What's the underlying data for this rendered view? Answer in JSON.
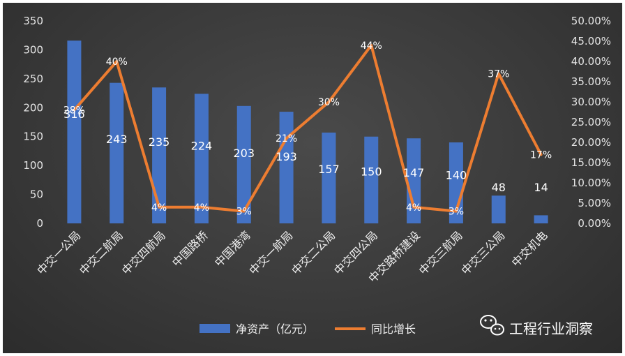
{
  "chart_data": {
    "type": "bar",
    "categories": [
      "中交一公局",
      "中交二航局",
      "中交四航局",
      "中国路桥",
      "中国港湾",
      "中交一航局",
      "中交二公局",
      "中交四公局",
      "中交路桥建设",
      "中交三航局",
      "中交三公局",
      "中交机电"
    ],
    "series": [
      {
        "name": "净资产（亿元）",
        "type": "bar",
        "axis": "left",
        "values": [
          316,
          243,
          235,
          224,
          203,
          193,
          157,
          150,
          147,
          140,
          48,
          14
        ],
        "labels": [
          "316",
          "243",
          "235",
          "224",
          "203",
          "193",
          "157",
          "150",
          "147",
          "140",
          "48",
          "14"
        ]
      },
      {
        "name": "同比增长",
        "type": "line",
        "axis": "right",
        "values": [
          28,
          40,
          4,
          4,
          3,
          21,
          30,
          44,
          4,
          3,
          37,
          17
        ],
        "labels": [
          "28%",
          "40%",
          "4%",
          "4%",
          "3%",
          "21%",
          "30%",
          "44%",
          "4%",
          "3%",
          "37%",
          "17%"
        ]
      }
    ],
    "ylim_left": [
      0,
      350
    ],
    "yticks_left": [
      "0",
      "50",
      "100",
      "150",
      "200",
      "250",
      "300",
      "350"
    ],
    "ylim_right": [
      0,
      50
    ],
    "yticks_right": [
      "0.00%",
      "5.00%",
      "10.00%",
      "15.00%",
      "20.00%",
      "25.00%",
      "30.00%",
      "35.00%",
      "40.00%",
      "45.00%",
      "50.00%"
    ],
    "grid": false,
    "legend": "bottom",
    "bar_color": "#4472c4",
    "line_color": "#ed7d31"
  },
  "watermark": {
    "text": "工程行业洞察",
    "icon": "wechat-icon"
  }
}
